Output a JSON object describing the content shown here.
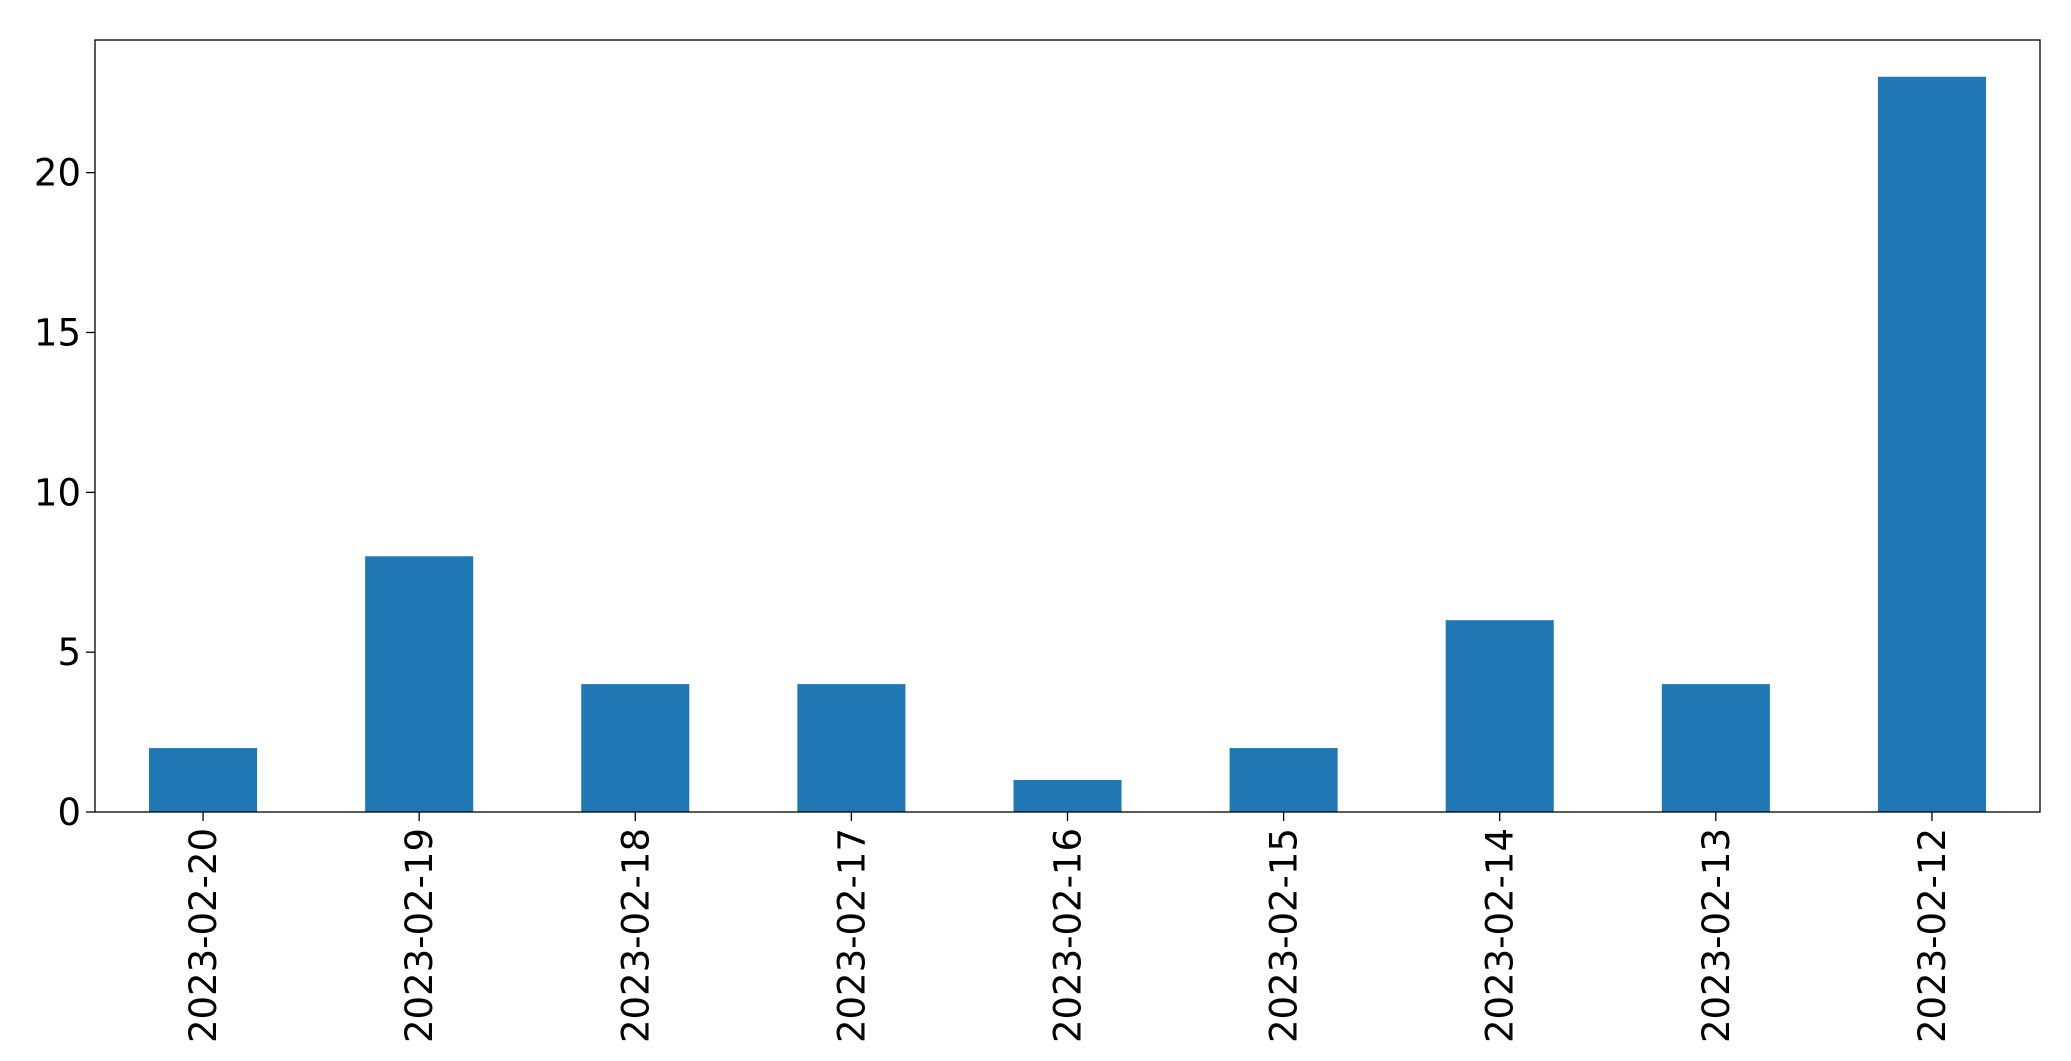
{
  "chart_data": {
    "type": "bar",
    "title": "",
    "xlabel": "",
    "ylabel": "",
    "categories": [
      "2023-02-20",
      "2023-02-19",
      "2023-02-18",
      "2023-02-17",
      "2023-02-16",
      "2023-02-15",
      "2023-02-14",
      "2023-02-13",
      "2023-02-12"
    ],
    "values": [
      2,
      8,
      4,
      4,
      1,
      2,
      6,
      4,
      23
    ],
    "ylim": [
      0,
      24.15
    ],
    "yticks": [
      0,
      5,
      10,
      15,
      20
    ],
    "bar_color": "#1f77b4",
    "grid": false,
    "legend": "none"
  }
}
